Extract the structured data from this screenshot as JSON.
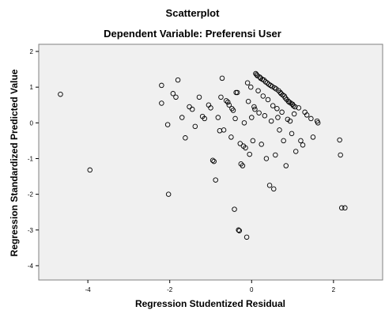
{
  "chart_data": {
    "type": "scatter",
    "title": "Scatterplot",
    "subtitle": "Dependent Variable: Preferensi User",
    "xlabel": "Regression Studentized Residual",
    "ylabel": "Regression Standardized Predicted Value",
    "xlim": [
      -5.2,
      3.2
    ],
    "ylim": [
      -4.4,
      2.2
    ],
    "xticks": [
      -4,
      -2,
      0,
      2
    ],
    "xtick_labels": [
      "-4",
      "-2",
      "0",
      "2"
    ],
    "yticks": [
      2,
      1,
      0,
      -1,
      -2,
      -3,
      -4
    ],
    "ytick_labels": [
      "2",
      "1",
      "0",
      "-1",
      "-2",
      "-3",
      "-4"
    ],
    "grid": false,
    "legend": "none",
    "plot_background": "#f0f0f0",
    "marker": "open-circle",
    "marker_color": "#000000",
    "points": [
      [
        -4.67,
        0.8
      ],
      [
        -3.95,
        -1.32
      ],
      [
        -2.2,
        1.05
      ],
      [
        -2.2,
        0.55
      ],
      [
        -2.05,
        -0.05
      ],
      [
        -2.03,
        -2.0
      ],
      [
        -1.92,
        0.82
      ],
      [
        -1.85,
        0.72
      ],
      [
        -1.8,
        1.2
      ],
      [
        -1.7,
        0.15
      ],
      [
        -1.62,
        -0.42
      ],
      [
        -1.52,
        0.45
      ],
      [
        -1.45,
        0.38
      ],
      [
        -1.38,
        -0.1
      ],
      [
        -1.28,
        0.72
      ],
      [
        -1.2,
        0.18
      ],
      [
        -1.15,
        0.12
      ],
      [
        -1.05,
        0.5
      ],
      [
        -1.0,
        0.42
      ],
      [
        -0.95,
        -1.05
      ],
      [
        -0.92,
        -1.08
      ],
      [
        -0.88,
        -1.6
      ],
      [
        -0.82,
        0.15
      ],
      [
        -0.78,
        -0.22
      ],
      [
        -0.75,
        0.72
      ],
      [
        -0.72,
        1.25
      ],
      [
        -0.68,
        -0.2
      ],
      [
        -0.62,
        0.62
      ],
      [
        -0.58,
        0.58
      ],
      [
        -0.55,
        0.5
      ],
      [
        -0.5,
        -0.4
      ],
      [
        -0.48,
        0.4
      ],
      [
        -0.45,
        0.35
      ],
      [
        -0.42,
        -2.42
      ],
      [
        -0.4,
        0.12
      ],
      [
        -0.38,
        0.85
      ],
      [
        -0.35,
        0.85
      ],
      [
        -0.32,
        -3.0
      ],
      [
        -0.3,
        -3.02
      ],
      [
        -0.28,
        -0.58
      ],
      [
        -0.26,
        -1.15
      ],
      [
        -0.22,
        -1.2
      ],
      [
        -0.2,
        -0.65
      ],
      [
        -0.18,
        0.0
      ],
      [
        -0.15,
        -0.7
      ],
      [
        -0.12,
        -3.2
      ],
      [
        -0.1,
        1.12
      ],
      [
        -0.08,
        0.6
      ],
      [
        -0.05,
        -0.88
      ],
      [
        -0.02,
        1.0
      ],
      [
        0.0,
        0.15
      ],
      [
        0.03,
        -0.5
      ],
      [
        0.06,
        0.45
      ],
      [
        0.08,
        0.38
      ],
      [
        0.1,
        1.38
      ],
      [
        0.12,
        1.35
      ],
      [
        0.14,
        1.32
      ],
      [
        0.16,
        0.9
      ],
      [
        0.18,
        0.28
      ],
      [
        0.2,
        1.28
      ],
      [
        0.22,
        1.25
      ],
      [
        0.24,
        -0.6
      ],
      [
        0.26,
        1.22
      ],
      [
        0.28,
        0.75
      ],
      [
        0.3,
        1.2
      ],
      [
        0.32,
        0.2
      ],
      [
        0.34,
        1.15
      ],
      [
        0.36,
        -1.0
      ],
      [
        0.38,
        1.12
      ],
      [
        0.4,
        0.65
      ],
      [
        0.42,
        1.08
      ],
      [
        0.44,
        -1.75
      ],
      [
        0.46,
        1.05
      ],
      [
        0.48,
        0.05
      ],
      [
        0.5,
        1.02
      ],
      [
        0.52,
        0.48
      ],
      [
        0.54,
        -1.85
      ],
      [
        0.56,
        0.98
      ],
      [
        0.58,
        -0.9
      ],
      [
        0.6,
        0.95
      ],
      [
        0.62,
        0.4
      ],
      [
        0.64,
        0.15
      ],
      [
        0.66,
        0.9
      ],
      [
        0.68,
        -0.2
      ],
      [
        0.7,
        0.85
      ],
      [
        0.72,
        0.82
      ],
      [
        0.74,
        0.3
      ],
      [
        0.76,
        0.78
      ],
      [
        0.78,
        -0.5
      ],
      [
        0.8,
        0.75
      ],
      [
        0.82,
        0.7
      ],
      [
        0.84,
        -1.2
      ],
      [
        0.86,
        0.65
      ],
      [
        0.88,
        0.1
      ],
      [
        0.9,
        0.6
      ],
      [
        0.92,
        0.58
      ],
      [
        0.94,
        0.05
      ],
      [
        0.96,
        0.55
      ],
      [
        0.98,
        -0.3
      ],
      [
        1.0,
        0.52
      ],
      [
        1.02,
        0.48
      ],
      [
        1.04,
        0.25
      ],
      [
        1.06,
        0.45
      ],
      [
        1.08,
        -0.8
      ],
      [
        1.15,
        0.42
      ],
      [
        1.2,
        -0.5
      ],
      [
        1.25,
        -0.62
      ],
      [
        1.3,
        0.3
      ],
      [
        1.35,
        0.22
      ],
      [
        1.45,
        0.12
      ],
      [
        1.5,
        -0.4
      ],
      [
        1.6,
        0.05
      ],
      [
        1.62,
        0.0
      ],
      [
        2.15,
        -0.48
      ],
      [
        2.17,
        -0.9
      ],
      [
        2.2,
        -2.38
      ],
      [
        2.28,
        -2.38
      ]
    ]
  }
}
